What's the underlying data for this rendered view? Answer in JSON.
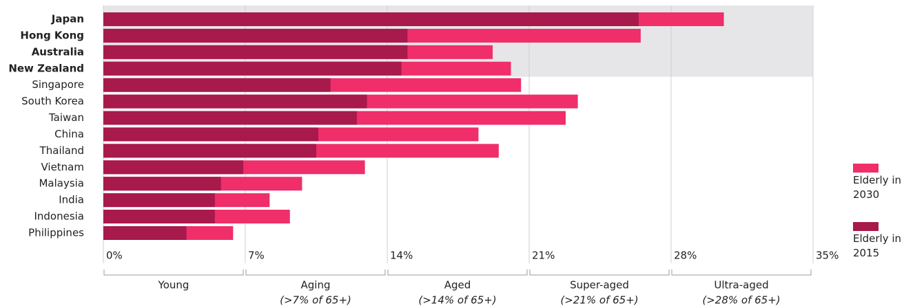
{
  "chart_data": {
    "type": "overlay-bar",
    "categories": [
      "Japan",
      "Hong Kong",
      "Australia",
      "New Zealand",
      "Singapore",
      "South Korea",
      "Taiwan",
      "China",
      "Thailand",
      "Vietnam",
      "Malaysia",
      "India",
      "Indonesia",
      "Philippines"
    ],
    "bold": [
      true,
      true,
      true,
      true,
      false,
      false,
      false,
      false,
      false,
      false,
      false,
      false,
      false,
      false
    ],
    "series": [
      {
        "name": "Elderly in 2030",
        "color": "#ef2e6a",
        "values": [
          30.6,
          26.5,
          19.2,
          20.1,
          20.6,
          23.4,
          22.8,
          18.5,
          19.5,
          12.9,
          9.8,
          8.2,
          9.2,
          6.4
        ]
      },
      {
        "name": "Elderly in 2015",
        "color": "#a8194c",
        "values": [
          26.4,
          15.0,
          15.0,
          14.7,
          11.2,
          13.0,
          12.5,
          10.6,
          10.5,
          6.9,
          5.8,
          5.5,
          5.5,
          4.1
        ]
      }
    ],
    "xlim": [
      0,
      35
    ],
    "xticks": [
      {
        "value": 0,
        "label": "0%"
      },
      {
        "value": 7,
        "label": "7%"
      },
      {
        "value": 14,
        "label": "14%"
      },
      {
        "value": 21,
        "label": "21%"
      },
      {
        "value": 28,
        "label": "28%"
      },
      {
        "value": 35,
        "label": "35%"
      }
    ],
    "zones": [
      {
        "label": "Young"
      },
      {
        "label": "Aging",
        "note": "(>7% of 65+)"
      },
      {
        "label": "Aged",
        "note": "(>14% of 65+)"
      },
      {
        "label": "Super-aged",
        "note": "(>21% of 65+)"
      },
      {
        "label": "Ultra-aged",
        "note": "(>28% of 65+)"
      }
    ],
    "grid": true
  }
}
